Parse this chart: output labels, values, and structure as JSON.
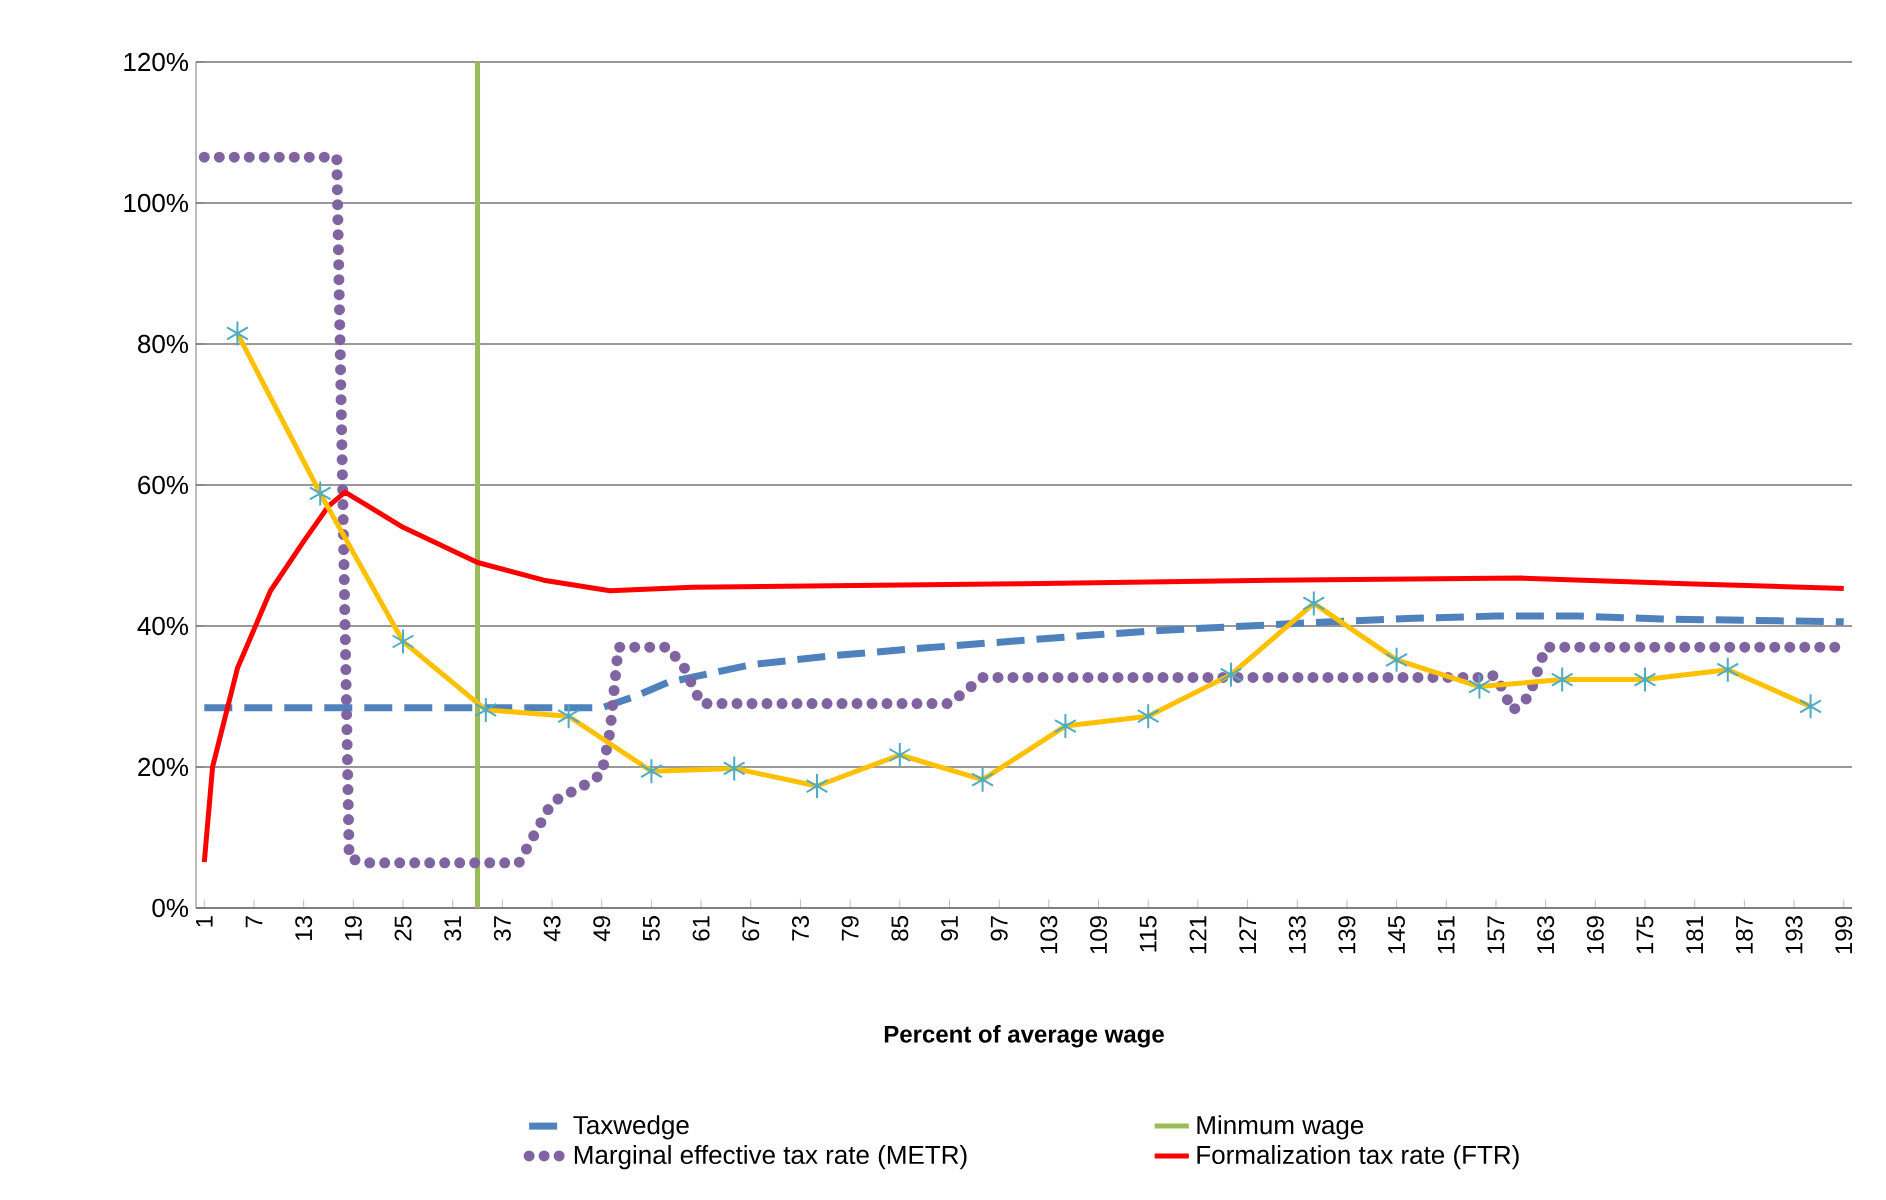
{
  "chart_data": {
    "type": "line",
    "xlabel": "Percent of average wage",
    "xlim": [
      0,
      200
    ],
    "xticks": [
      1,
      7,
      13,
      19,
      25,
      31,
      37,
      43,
      49,
      55,
      61,
      67,
      73,
      79,
      85,
      91,
      97,
      103,
      109,
      115,
      121,
      127,
      133,
      139,
      145,
      151,
      157,
      163,
      169,
      175,
      181,
      187,
      193,
      199
    ],
    "ylim": [
      0,
      120
    ],
    "yticks": [
      {
        "value": 0,
        "label": "0%"
      },
      {
        "value": 20,
        "label": "20%"
      },
      {
        "value": 40,
        "label": "40%"
      },
      {
        "value": 60,
        "label": "60%"
      },
      {
        "value": 80,
        "label": "80%"
      },
      {
        "value": 100,
        "label": "100%"
      },
      {
        "value": 120,
        "label": "120%"
      }
    ],
    "grid": "y",
    "legend": "bottom",
    "series": [
      {
        "name": "Taxwedge",
        "color": "#4f81bd",
        "line_style": "dashed",
        "marker": "none",
        "x": [
          1,
          49,
          53,
          57,
          67,
          77,
          87,
          97,
          107,
          117,
          127,
          137,
          147,
          157,
          167,
          177,
          187,
          199
        ],
        "values": [
          28.4,
          28.4,
          30,
          32,
          34.5,
          35.8,
          36.8,
          37.7,
          38.6,
          39.4,
          40,
          40.6,
          41.1,
          41.4,
          41.4,
          41,
          40.8,
          40.6
        ]
      },
      {
        "name": "Minmum wage",
        "color": "#9bbb59",
        "line_style": "solid",
        "marker": "none",
        "x": [
          34,
          34
        ],
        "values": [
          0,
          120
        ]
      },
      {
        "name": "Marginal effective tax rate (METR)",
        "color": "#8064a2",
        "line_style": "dotted",
        "marker": "none",
        "x": [
          1,
          17,
          18.5,
          21,
          39,
          43,
          47,
          49,
          50,
          51,
          57,
          59,
          61,
          91,
          95,
          155,
          157,
          159,
          161,
          163,
          199
        ],
        "values": [
          106.5,
          106.5,
          7,
          6.4,
          6.4,
          15,
          17.5,
          19,
          25,
          37,
          37,
          34,
          29,
          29,
          32.7,
          32.7,
          33,
          28,
          30,
          37,
          37
        ]
      },
      {
        "name": "Formalization tax rate (FTR)",
        "color": "#ff0000",
        "line_style": "solid",
        "marker": "none",
        "x": [
          1,
          2,
          5,
          9,
          13,
          16,
          18,
          25,
          34,
          42,
          50,
          60,
          100,
          130,
          160,
          180,
          199
        ],
        "values": [
          6.5,
          20,
          34,
          45,
          52,
          57,
          59,
          54,
          49,
          46.5,
          45,
          45.5,
          46,
          46.5,
          46.8,
          46,
          45.3
        ]
      },
      {
        "color": "#ffc000",
        "line_style": "solid",
        "marker": "cross",
        "x": [
          5,
          15,
          25,
          35,
          45,
          55,
          65,
          75,
          85,
          95,
          105,
          115,
          125,
          135,
          145,
          155,
          165,
          175,
          185,
          195
        ],
        "values": [
          81.5,
          58.8,
          37.8,
          28.1,
          27.2,
          19.4,
          19.8,
          17.3,
          21.7,
          18.2,
          25.8,
          27.2,
          33.1,
          43.2,
          35.2,
          31.4,
          32.4,
          32.4,
          33.8,
          28.6
        ]
      }
    ]
  }
}
